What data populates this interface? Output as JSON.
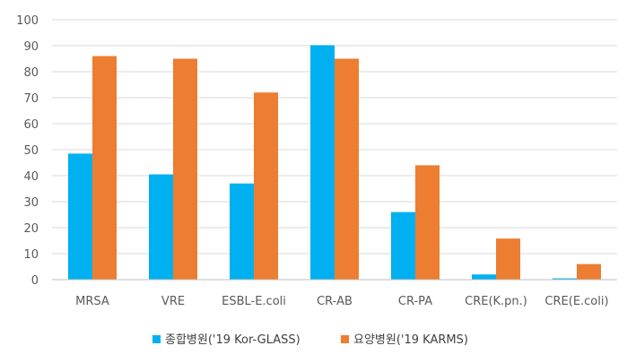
{
  "chart_data": {
    "type": "bar",
    "categories": [
      "MRSA",
      "VRE",
      "ESBL-E.coli",
      "CR-AB",
      "CR-PA",
      "CRE(K.pn.)",
      "CRE(E.coli)"
    ],
    "series": [
      {
        "name": "종합병원('19 Kor-GLASS)",
        "color": "#00b0f0",
        "values": [
          48.5,
          40.5,
          37,
          90.2,
          26,
          2,
          0.5
        ]
      },
      {
        "name": "요양병원('19 KARMS)",
        "color": "#ed7d31",
        "values": [
          86,
          85,
          72,
          85,
          44,
          15.8,
          6
        ]
      }
    ],
    "ylim": [
      0,
      100
    ],
    "yticks": [
      0,
      10,
      20,
      30,
      40,
      50,
      60,
      70,
      80,
      90,
      100
    ],
    "grid": true,
    "legend_position": "bottom",
    "title": "",
    "xlabel": "",
    "ylabel": ""
  }
}
